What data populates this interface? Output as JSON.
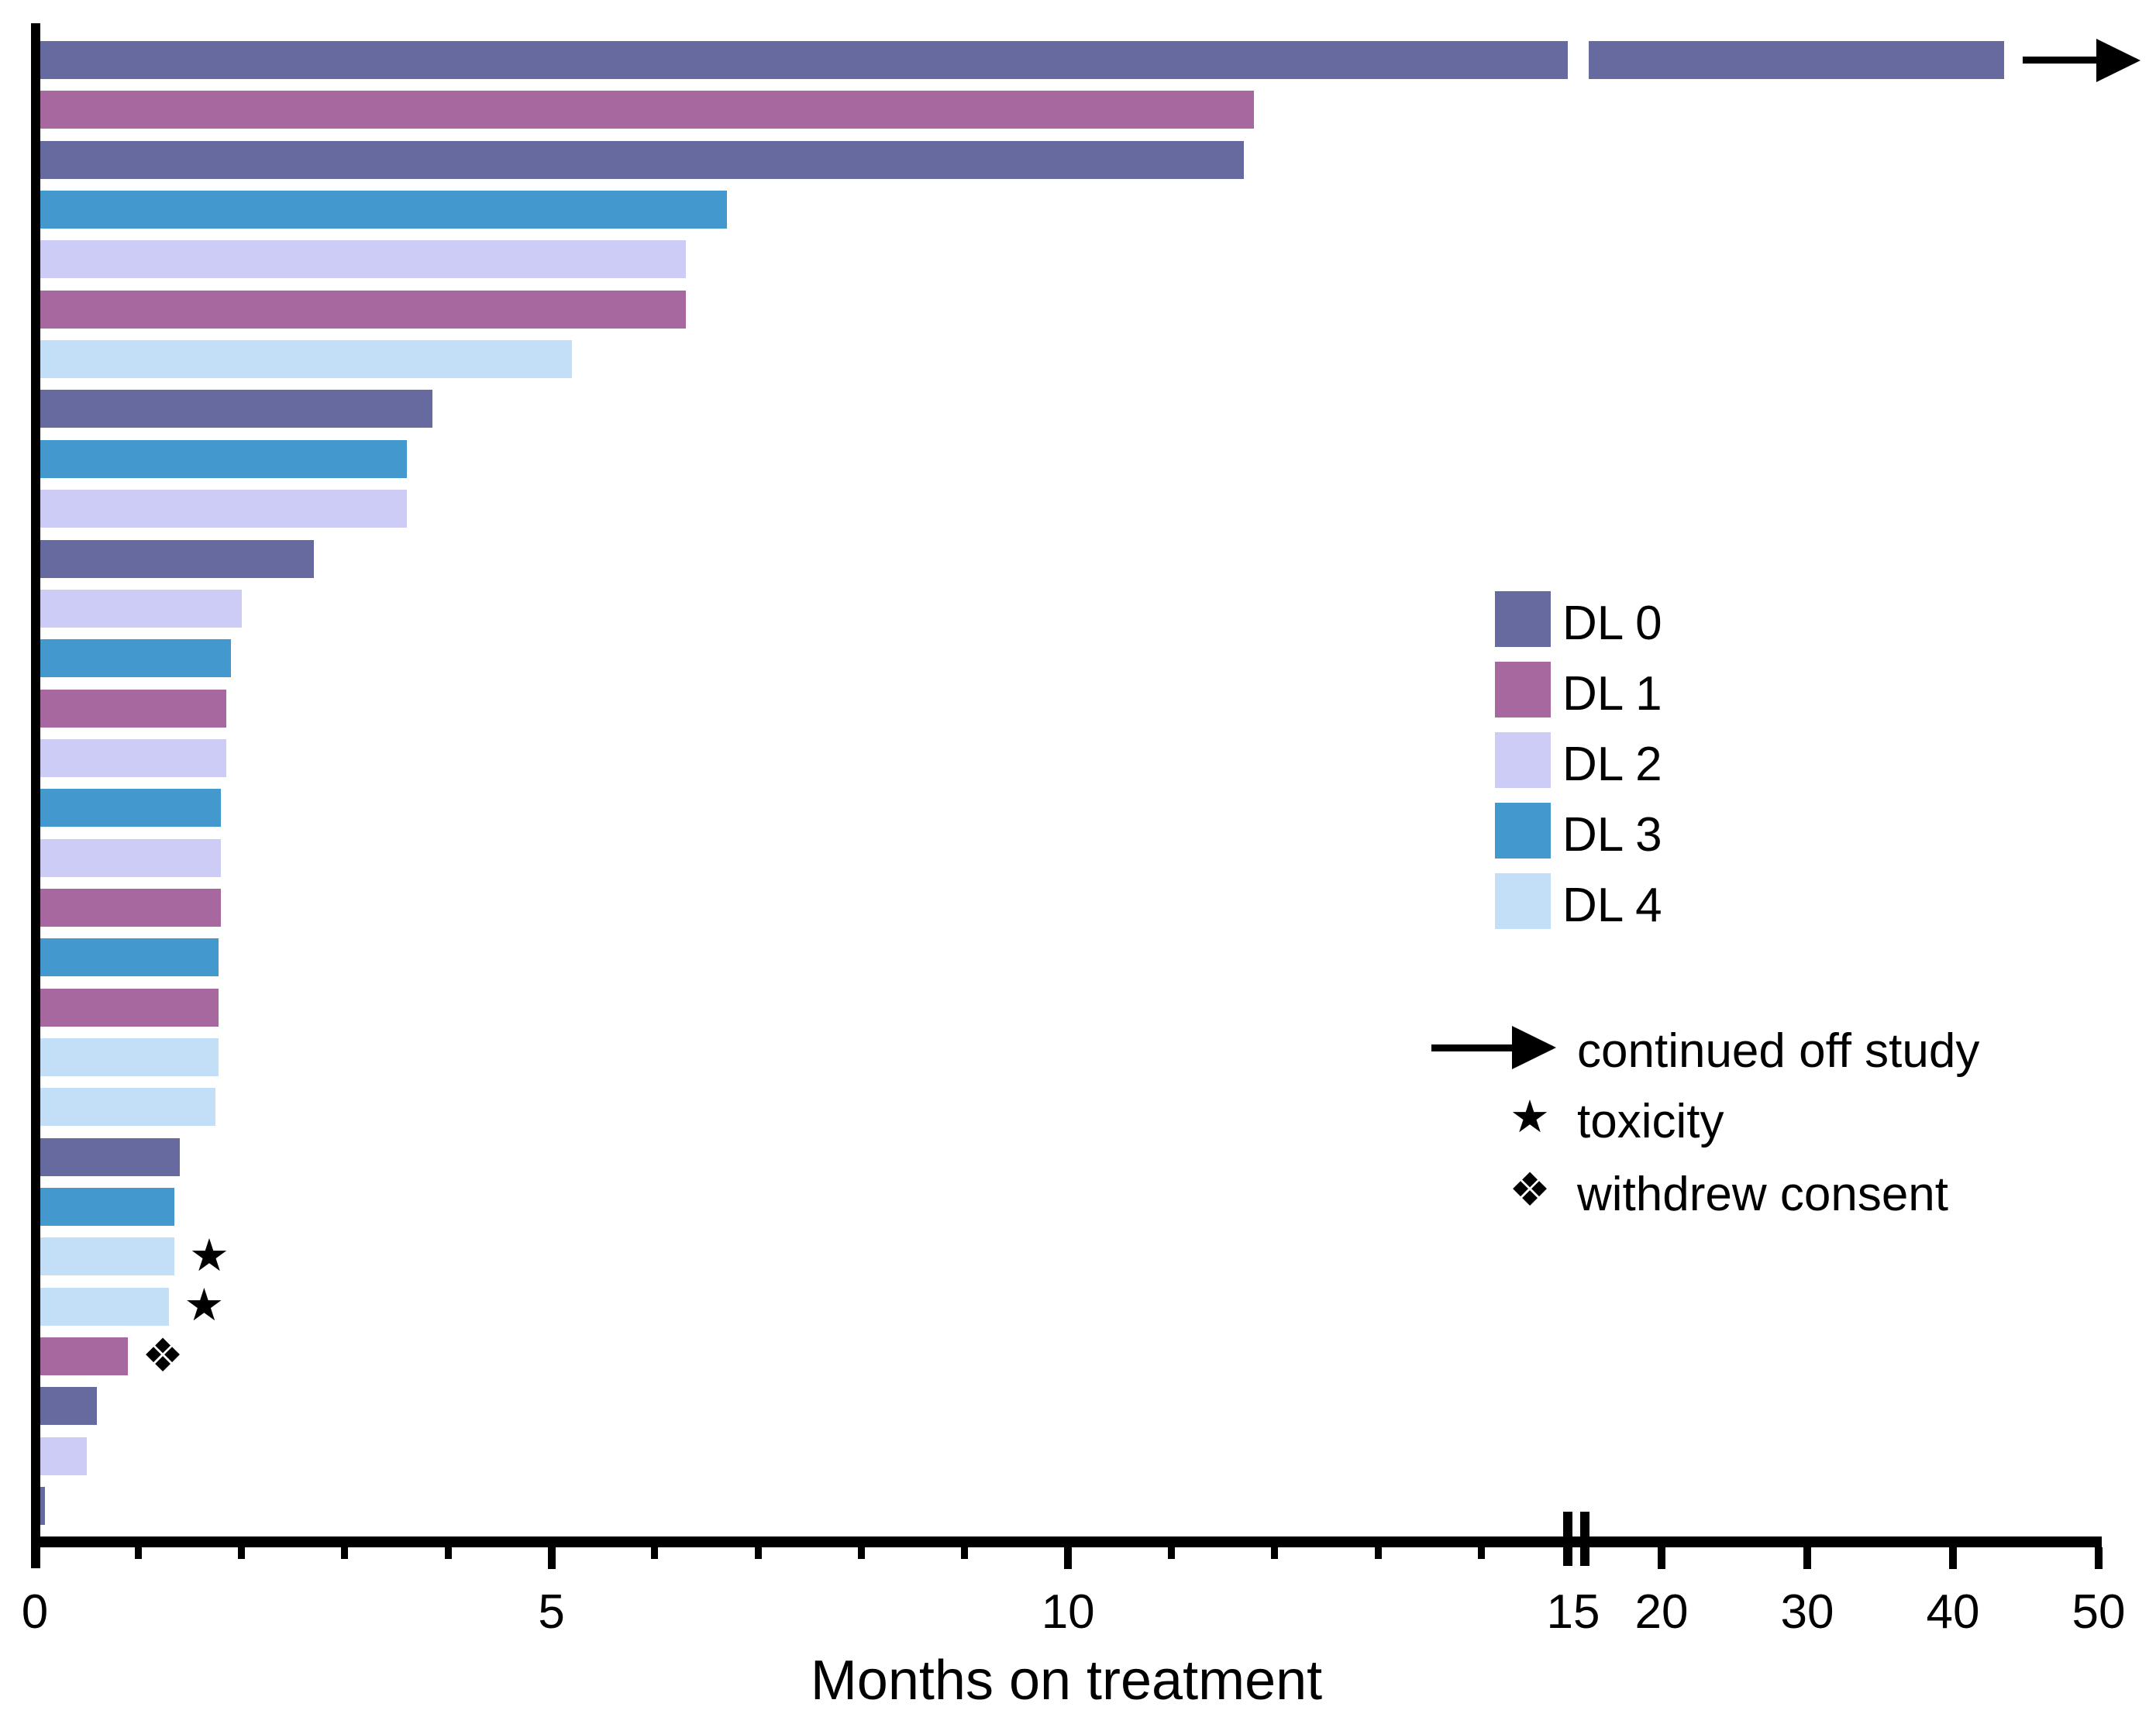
{
  "figure": {
    "background": "#ffffff"
  },
  "chart_data": {
    "type": "bar",
    "orientation": "horizontal",
    "title": "",
    "xlabel": "Months on treatment",
    "ylabel": "",
    "grid": false,
    "x_axis": {
      "range": [
        0,
        50
      ],
      "break_at": 15,
      "major_ticks": [
        {
          "value": 0,
          "label": "0"
        },
        {
          "value": 5,
          "label": "5"
        },
        {
          "value": 10,
          "label": "10"
        },
        {
          "value": 15,
          "label": "15"
        },
        {
          "value": 20,
          "label": "20"
        },
        {
          "value": 30,
          "label": "30"
        },
        {
          "value": 40,
          "label": "40"
        },
        {
          "value": 50,
          "label": "50"
        }
      ],
      "minor_ticks": [
        1,
        2,
        3,
        4,
        6,
        7,
        8,
        9,
        11,
        12,
        13,
        14
      ]
    },
    "bars": [
      {
        "patient": 1,
        "dose_level": "DL 0",
        "months": 43.5,
        "marker": "arrow"
      },
      {
        "patient": 2,
        "dose_level": "DL 1",
        "months": 11.8
      },
      {
        "patient": 3,
        "dose_level": "DL 0",
        "months": 11.7
      },
      {
        "patient": 4,
        "dose_level": "DL 3",
        "months": 6.7
      },
      {
        "patient": 5,
        "dose_level": "DL 2",
        "months": 6.3
      },
      {
        "patient": 6,
        "dose_level": "DL 1",
        "months": 6.3
      },
      {
        "patient": 7,
        "dose_level": "DL 4",
        "months": 5.2
      },
      {
        "patient": 8,
        "dose_level": "DL 0",
        "months": 3.85
      },
      {
        "patient": 9,
        "dose_level": "DL 3",
        "months": 3.6
      },
      {
        "patient": 10,
        "dose_level": "DL 2",
        "months": 3.6
      },
      {
        "patient": 11,
        "dose_level": "DL 0",
        "months": 2.7
      },
      {
        "patient": 12,
        "dose_level": "DL 2",
        "months": 2.0
      },
      {
        "patient": 13,
        "dose_level": "DL 3",
        "months": 1.9
      },
      {
        "patient": 14,
        "dose_level": "DL 1",
        "months": 1.85
      },
      {
        "patient": 15,
        "dose_level": "DL 2",
        "months": 1.85
      },
      {
        "patient": 16,
        "dose_level": "DL 3",
        "months": 1.8
      },
      {
        "patient": 17,
        "dose_level": "DL 2",
        "months": 1.8
      },
      {
        "patient": 18,
        "dose_level": "DL 1",
        "months": 1.8
      },
      {
        "patient": 19,
        "dose_level": "DL 3",
        "months": 1.78
      },
      {
        "patient": 20,
        "dose_level": "DL 1",
        "months": 1.78
      },
      {
        "patient": 21,
        "dose_level": "DL 4",
        "months": 1.78
      },
      {
        "patient": 22,
        "dose_level": "DL 4",
        "months": 1.75
      },
      {
        "patient": 23,
        "dose_level": "DL 0",
        "months": 1.4
      },
      {
        "patient": 24,
        "dose_level": "DL 3",
        "months": 1.35
      },
      {
        "patient": 25,
        "dose_level": "DL 4",
        "months": 1.35,
        "marker": "star"
      },
      {
        "patient": 26,
        "dose_level": "DL 4",
        "months": 1.3,
        "marker": "star"
      },
      {
        "patient": 27,
        "dose_level": "DL 1",
        "months": 0.9,
        "marker": "diamond"
      },
      {
        "patient": 28,
        "dose_level": "DL 0",
        "months": 0.6
      },
      {
        "patient": 29,
        "dose_level": "DL 2",
        "months": 0.5
      },
      {
        "patient": 30,
        "dose_level": "DL 0",
        "months": 0.1
      }
    ],
    "legend_doses": [
      {
        "label": "DL 0",
        "color": "#666a9f"
      },
      {
        "label": "DL 1",
        "color": "#a7679f"
      },
      {
        "label": "DL 2",
        "color": "#cdccf7"
      },
      {
        "label": "DL 3",
        "color": "#4398ce"
      },
      {
        "label": "DL 4",
        "color": "#c3def7"
      }
    ],
    "legend_markers": [
      {
        "symbol": "arrow",
        "label": "continued off study"
      },
      {
        "symbol": "star",
        "label": "toxicity"
      },
      {
        "symbol": "diamond",
        "label": "withdrew consent"
      }
    ],
    "marker_glyphs": {
      "star": "★",
      "diamond": "❖"
    },
    "axis_color": "#000000"
  }
}
